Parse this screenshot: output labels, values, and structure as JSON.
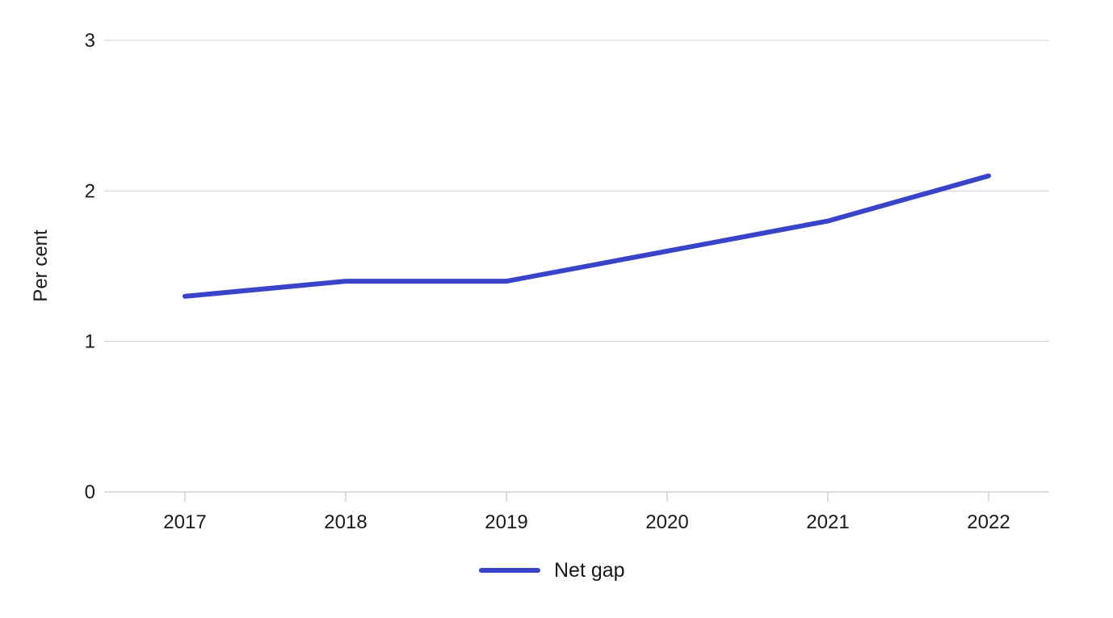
{
  "chart_data": {
    "type": "line",
    "title": "",
    "xlabel": "",
    "ylabel": "Per cent",
    "categories": [
      "2017",
      "2018",
      "2019",
      "2020",
      "2021",
      "2022"
    ],
    "series": [
      {
        "name": "Net gap",
        "values": [
          1.3,
          1.4,
          1.4,
          1.6,
          1.8,
          2.1
        ],
        "color": "#3a44c8"
      }
    ],
    "ylim": [
      0,
      3
    ],
    "yticks": [
      "0",
      "1",
      "2",
      "3"
    ],
    "grid": true,
    "legend": "bottom-center"
  },
  "colors": {
    "grid": "#cfcfcf",
    "axis": "#bdbdbd",
    "text": "#1a1a1a"
  }
}
